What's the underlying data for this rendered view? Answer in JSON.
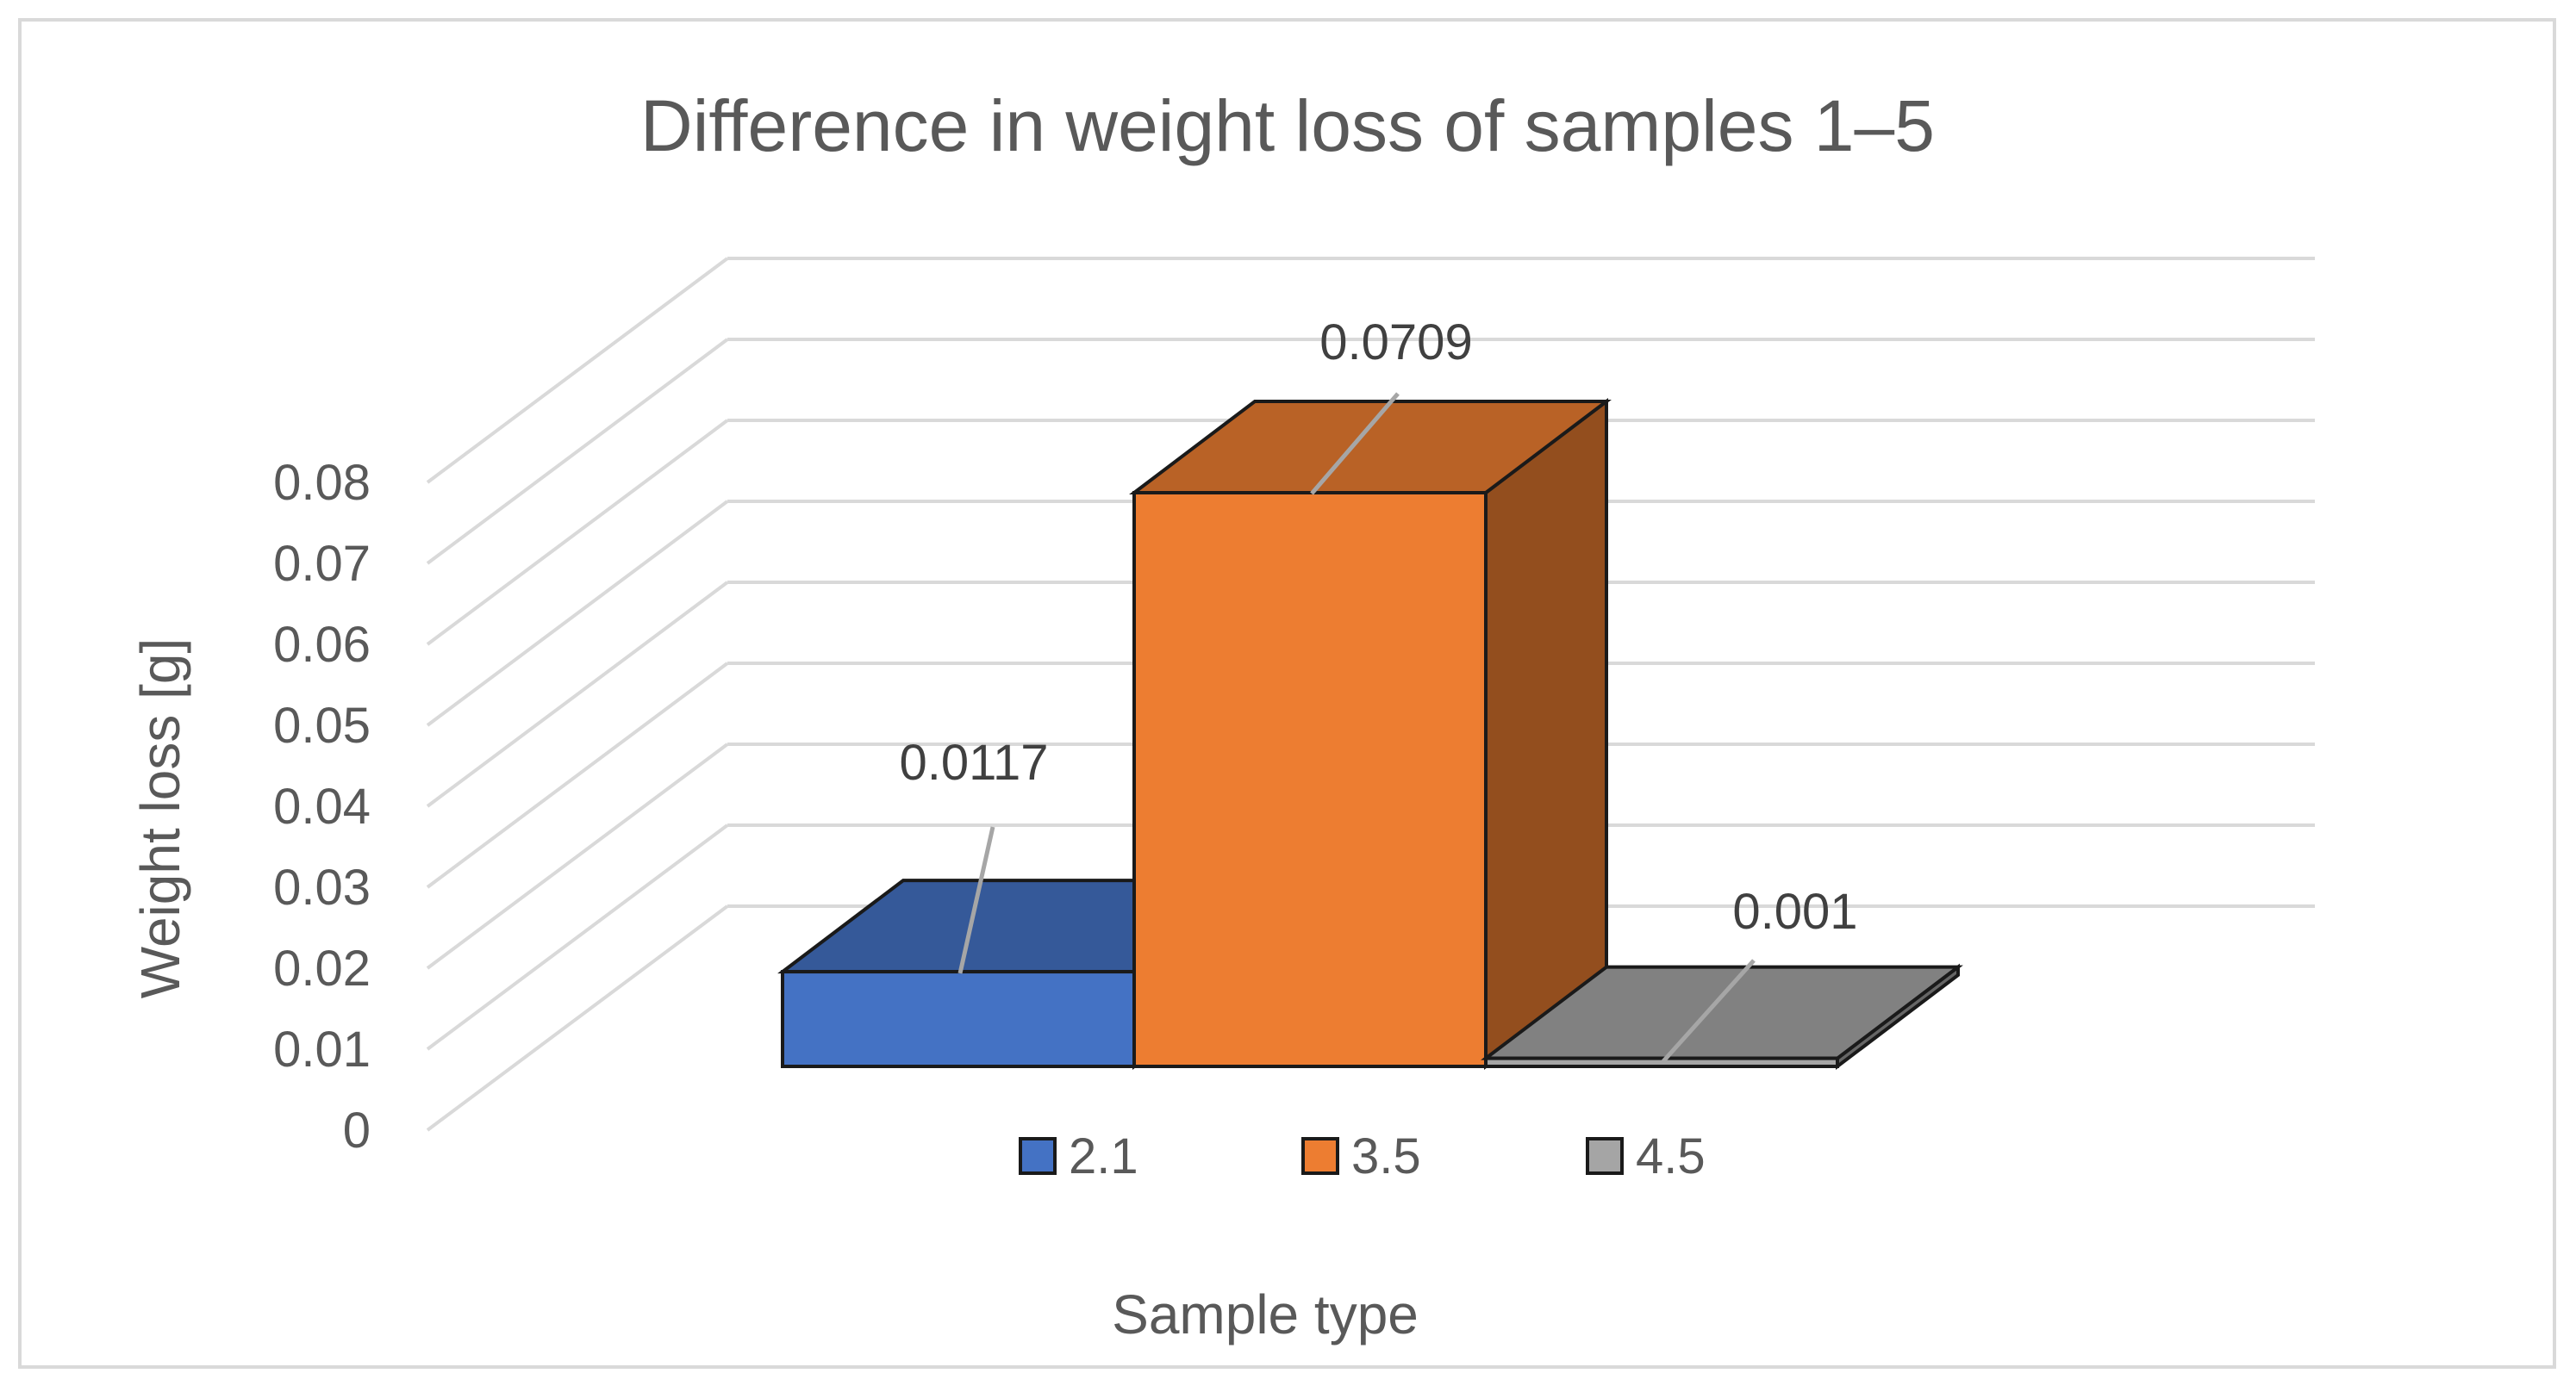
{
  "chart_data": {
    "type": "bar",
    "style": "3d-clustered-column",
    "title": "Difference in weight loss of samples 1–5",
    "xlabel": "Sample type",
    "ylabel": "Weight loss [g]",
    "ylim": [
      0,
      0.08
    ],
    "ytick_step": 0.01,
    "yticks": [
      "0",
      "0.01",
      "0.02",
      "0.03",
      "0.04",
      "0.05",
      "0.06",
      "0.07",
      "0.08"
    ],
    "grid": true,
    "legend_position": "bottom",
    "series": [
      {
        "name": "2.1",
        "value": 0.0117,
        "label": "0.0117",
        "color": "#4472c4"
      },
      {
        "name": "3.5",
        "value": 0.0709,
        "label": "0.0709",
        "color": "#ed7d31"
      },
      {
        "name": "4.5",
        "value": 0.001,
        "label": "0.001",
        "color": "#a5a5a5"
      }
    ]
  }
}
